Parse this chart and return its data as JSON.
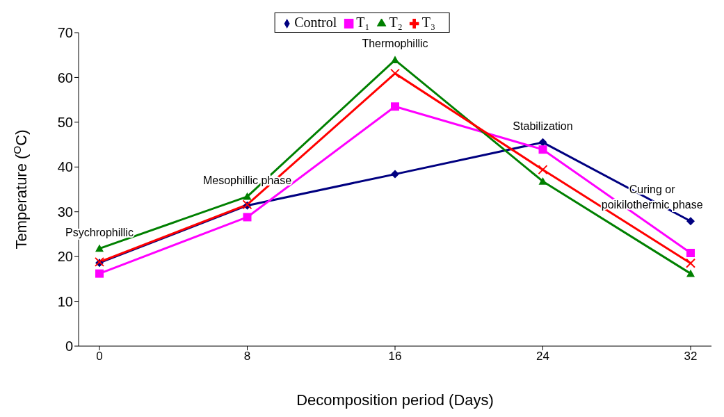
{
  "chart_data": {
    "type": "line",
    "xlabel": "Decomposition period (Days)",
    "ylabel": "Temperature ($^{O}$C)",
    "categories": [
      "0",
      "8",
      "16",
      "24",
      "32"
    ],
    "series": [
      {
        "name": "Control",
        "color": "#000080",
        "marker": "diamond",
        "values": [
          18.6,
          31.4,
          38.4,
          45.5,
          27.9
        ]
      },
      {
        "name": "T₁",
        "color": "#ff00ff",
        "marker": "square",
        "values": [
          16.2,
          28.8,
          53.5,
          43.9,
          20.8
        ]
      },
      {
        "name": "T₂",
        "color": "#008000",
        "marker": "triangle",
        "values": [
          21.8,
          33.4,
          63.9,
          36.8,
          16.2
        ]
      },
      {
        "name": "T₃",
        "color": "#ff0000",
        "marker": "cross",
        "values": [
          18.8,
          31.6,
          60.9,
          39.4,
          18.5
        ]
      }
    ],
    "ylim": [
      0,
      70
    ],
    "yticks": [
      0,
      10,
      20,
      30,
      40,
      50,
      60,
      70
    ],
    "grid": false,
    "legend": "top",
    "annotations": [
      "Psychrophillic",
      "Mesophillic  phase",
      "Thermophillic",
      "Stabilization",
      "Curing or\npoikilothermic  phase"
    ]
  }
}
